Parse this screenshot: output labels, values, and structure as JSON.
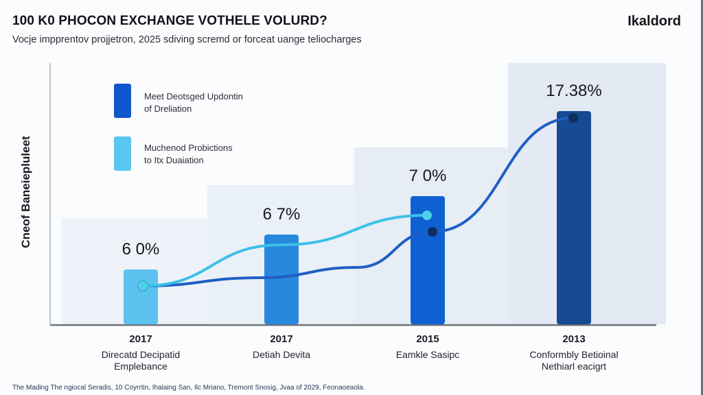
{
  "header": {
    "title": "100 K0 PHOCON EXCHANGE VOTHELE VOLURD?",
    "subtitle": "Vocje impprentov projjetron, 2025 sdiving scremd  or forceat uange teliocharges",
    "brand": "Ikaldord"
  },
  "footer": {
    "source": "The Mading The ngiocal Seradis, 10 Coyrrtin, Ihalaing San, Ilc Mriano, Tremont Snosig, Jvaa of 2029, Feonaoeaola."
  },
  "chart_data": {
    "type": "bar",
    "title": "100 K0 PHOCON EXCHANGE VOTHELE VOLURD?",
    "subtitle": "Vocje impprentov projjetron, 2025 sdiving scremd  or forceat uange teliocharges",
    "xlabel": "",
    "ylabel": "Cneof Baneiepluleet",
    "grid": false,
    "legend_position": "top-left",
    "categories": [
      {
        "year": "2017",
        "label": [
          "Direcatd Decipatid",
          "Emplebance"
        ]
      },
      {
        "year": "2017",
        "label": [
          "Detiah Devita"
        ]
      },
      {
        "year": "2015",
        "label": [
          "Eamkle Sasipc"
        ]
      },
      {
        "year": "2013",
        "label": [
          "Conformbly Betioinal",
          "Nethiarl eacigrt"
        ]
      }
    ],
    "bars": {
      "value_labels": [
        "6 0%",
        "6 7%",
        "7 0%",
        "17.38%"
      ],
      "values": [
        6.0,
        6.7,
        7.0,
        17.38
      ],
      "colors": [
        "#5bc1ee",
        "#2788dd",
        "#0f60d2",
        "#164a92"
      ]
    },
    "series": [
      {
        "name": "Meet Deotsged Updontin of Dreliation",
        "legend_lines": [
          "Meet Deotsged Updontin",
          "of Dreliation"
        ],
        "color": "#1f5fc4",
        "values": [
          6.0,
          6.6,
          8.5,
          20.0
        ],
        "marker_points": [
          0,
          2,
          3
        ]
      },
      {
        "name": "Muchenod Probictions to Itx Duaiation",
        "legend_lines": [
          "Muchenod Probictions",
          "to Itx Duaiation"
        ],
        "color": "#3cc0e8",
        "values": [
          6.0,
          9.0,
          13.0
        ],
        "marker_points": [
          0,
          2
        ]
      }
    ],
    "ylim": [
      0,
      25
    ]
  }
}
